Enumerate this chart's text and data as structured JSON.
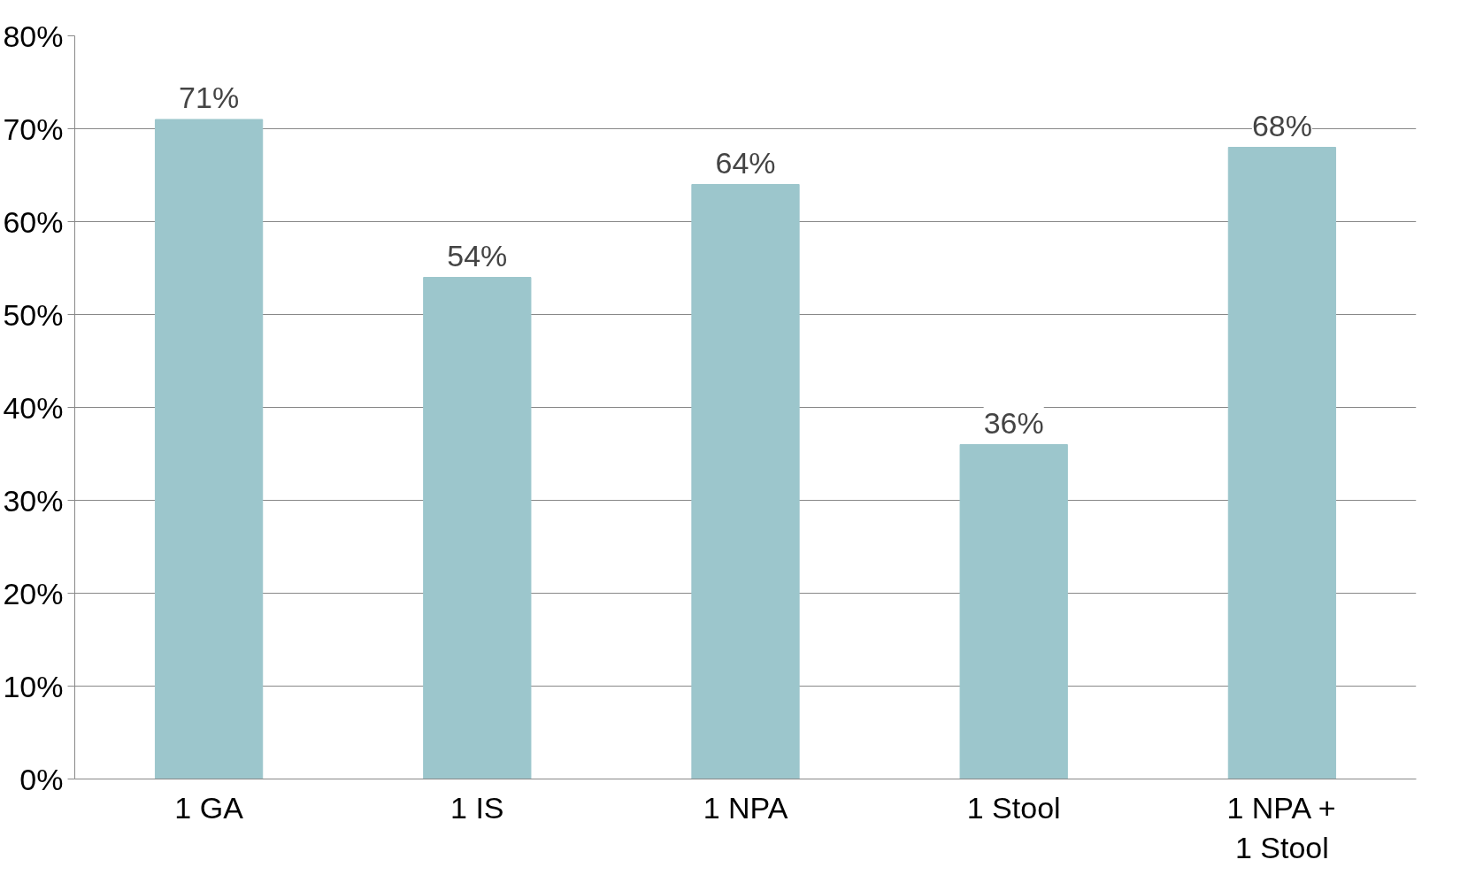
{
  "chart_data": {
    "type": "bar",
    "categories": [
      "1 GA",
      "1 IS",
      "1 NPA",
      "1 Stool",
      "1 NPA + 1 Stool"
    ],
    "values": [
      71,
      54,
      64,
      36,
      68
    ],
    "value_labels": [
      "71%",
      "54%",
      "64%",
      "36%",
      "68%"
    ],
    "color": "#9cc6cc",
    "ylim": [
      0,
      80
    ],
    "yticks": [
      {
        "value": 0,
        "label": "0%"
      },
      {
        "value": 10,
        "label": "10%"
      },
      {
        "value": 20,
        "label": "20%"
      },
      {
        "value": 30,
        "label": "30%"
      },
      {
        "value": 40,
        "label": "40%"
      },
      {
        "value": 50,
        "label": "50%"
      },
      {
        "value": 60,
        "label": "60%"
      },
      {
        "value": 70,
        "label": "70%"
      },
      {
        "value": 80,
        "label": "80%"
      }
    ],
    "grid": "y"
  }
}
